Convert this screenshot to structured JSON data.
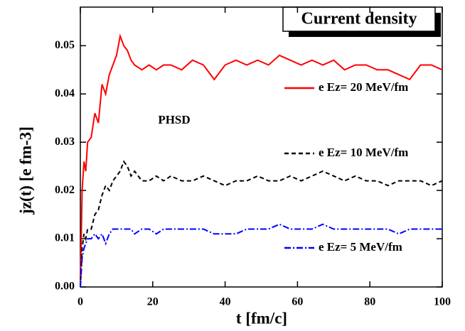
{
  "chart_data": {
    "type": "line",
    "title": "Current density",
    "annotation": "PHSD",
    "xlabel": "t [fm/c]",
    "ylabel": "jz(t)   [e fm-3]",
    "x": [
      0,
      0.5,
      1,
      1.5,
      2,
      3,
      4,
      5,
      6,
      7,
      8,
      9,
      10,
      11,
      12,
      13,
      14,
      15,
      17,
      19,
      21,
      23,
      25,
      28,
      31,
      34,
      37,
      40,
      43,
      46,
      49,
      52,
      55,
      58,
      61,
      64,
      67,
      70,
      73,
      76,
      79,
      82,
      85,
      88,
      91,
      94,
      97,
      100
    ],
    "series": [
      {
        "name": "e Ez= 20 MeV/fm",
        "color": "#ff0000",
        "linestyle": "solid",
        "values": [
          0,
          0.02,
          0.026,
          0.024,
          0.03,
          0.031,
          0.036,
          0.034,
          0.042,
          0.04,
          0.044,
          0.046,
          0.048,
          0.052,
          0.05,
          0.049,
          0.047,
          0.046,
          0.045,
          0.046,
          0.045,
          0.046,
          0.046,
          0.045,
          0.047,
          0.046,
          0.043,
          0.046,
          0.047,
          0.046,
          0.047,
          0.046,
          0.048,
          0.047,
          0.046,
          0.047,
          0.046,
          0.047,
          0.045,
          0.046,
          0.046,
          0.045,
          0.045,
          0.044,
          0.043,
          0.046,
          0.046,
          0.045
        ]
      },
      {
        "name": "e Ez= 10 MeV/fm",
        "color": "#000000",
        "linestyle": "dashed",
        "values": [
          0,
          0.008,
          0.011,
          0.01,
          0.012,
          0.012,
          0.015,
          0.016,
          0.019,
          0.021,
          0.02,
          0.022,
          0.023,
          0.024,
          0.026,
          0.025,
          0.023,
          0.024,
          0.022,
          0.022,
          0.023,
          0.022,
          0.023,
          0.022,
          0.022,
          0.023,
          0.022,
          0.021,
          0.022,
          0.022,
          0.023,
          0.022,
          0.022,
          0.023,
          0.022,
          0.023,
          0.024,
          0.023,
          0.022,
          0.023,
          0.022,
          0.022,
          0.021,
          0.022,
          0.022,
          0.022,
          0.021,
          0.022
        ]
      },
      {
        "name": "e Ez=   5 MeV/fm",
        "color": "#0000ff",
        "linestyle": "dashdot",
        "values": [
          0,
          0.006,
          0.008,
          0.009,
          0.01,
          0.01,
          0.011,
          0.01,
          0.011,
          0.009,
          0.011,
          0.012,
          0.012,
          0.012,
          0.012,
          0.012,
          0.012,
          0.011,
          0.012,
          0.012,
          0.011,
          0.012,
          0.012,
          0.012,
          0.012,
          0.012,
          0.011,
          0.011,
          0.011,
          0.012,
          0.012,
          0.012,
          0.013,
          0.012,
          0.012,
          0.012,
          0.013,
          0.012,
          0.012,
          0.012,
          0.012,
          0.012,
          0.012,
          0.011,
          0.012,
          0.012,
          0.012,
          0.012
        ]
      }
    ],
    "xlim": [
      0,
      100
    ],
    "xticks": [
      0,
      20,
      40,
      60,
      80,
      100
    ],
    "ylim": [
      0,
      0.058
    ],
    "yticks": [
      {
        "value": 0,
        "label": "0.00"
      },
      0.01,
      0.02,
      0.03,
      0.04,
      0.05
    ]
  }
}
